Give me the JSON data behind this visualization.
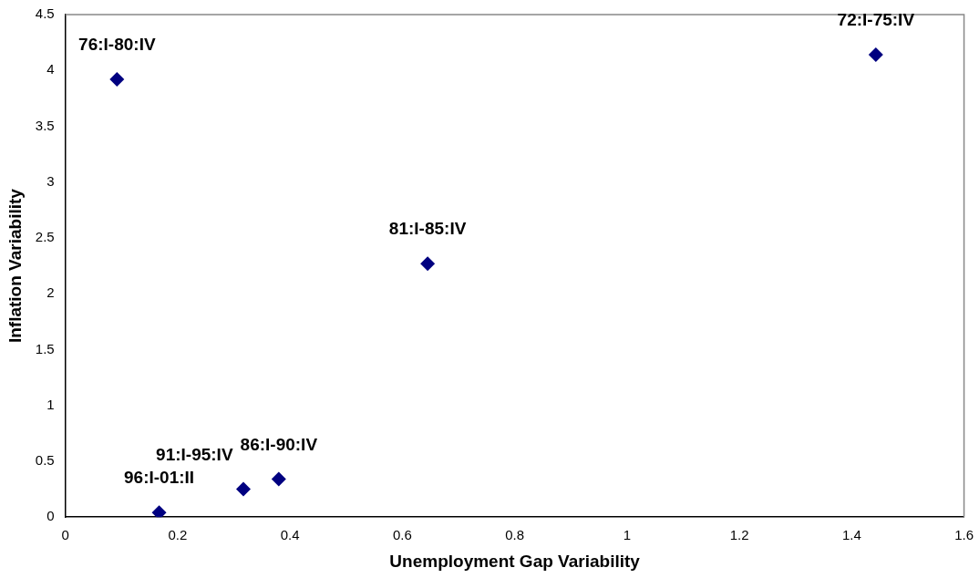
{
  "chart_data": {
    "type": "scatter",
    "xlabel": "Unemployment Gap Variability",
    "ylabel": "Inflation Variability",
    "x": [
      1.443,
      0.092,
      0.645,
      0.38,
      0.317,
      0.167
    ],
    "series": [
      {
        "color": "#000080",
        "values": [
          4.14,
          3.92,
          2.27,
          0.34,
          0.25,
          0.04
        ]
      }
    ],
    "xlim": [
      0,
      1.6
    ],
    "xticks": [
      0,
      0.2,
      0.4,
      0.6,
      0.8,
      1,
      1.2,
      1.4,
      1.6
    ],
    "ylim": [
      0,
      4.5
    ],
    "yticks": [
      0,
      0.5,
      1,
      1.5,
      2,
      2.5,
      3,
      3.5,
      4,
      4.5
    ],
    "marker": "diamond",
    "grid": false,
    "legend": false,
    "annotations": [
      {
        "text": "72:I-75:IV",
        "x": 1.443,
        "y": 4.14
      },
      {
        "text": "76:I-80:IV",
        "x": 0.092,
        "y": 3.92
      },
      {
        "text": "81:I-85:IV",
        "x": 0.645,
        "y": 2.27
      },
      {
        "text": "86:I-90:IV",
        "x": 0.38,
        "y": 0.34
      },
      {
        "text": "91:I-95:IV",
        "x": 0.317,
        "y": 0.25
      },
      {
        "text": "96:I-01:II",
        "x": 0.167,
        "y": 0.04
      }
    ]
  }
}
